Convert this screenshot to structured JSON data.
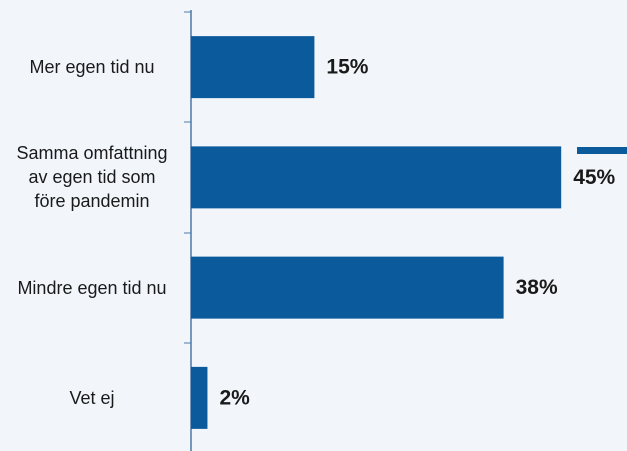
{
  "chart_data": {
    "type": "bar",
    "orientation": "horizontal",
    "categories": [
      "Mer egen tid nu",
      "Samma omfattning av egen tid som före pandemin",
      "Mindre egen tid nu",
      "Vet ej"
    ],
    "values": [
      15,
      45,
      38,
      2
    ],
    "value_labels": [
      "15%",
      "45%",
      "38%",
      "2%"
    ],
    "color": "#0b5a9b",
    "xlim": [
      0,
      53
    ]
  }
}
